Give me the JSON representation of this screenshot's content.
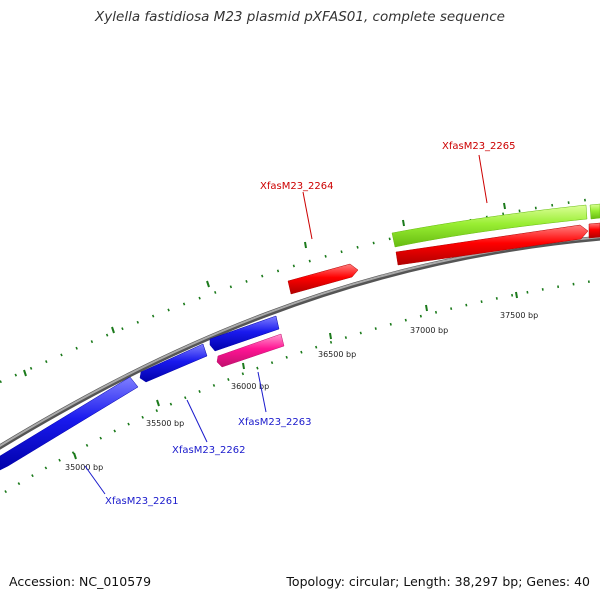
{
  "title": "Xylella fastidiosa M23 plasmid pXFAS01, complete sequence",
  "footer": {
    "accession": "Accession: NC_010579",
    "topology": "Topology: circular; Length: 38,297 bp; Genes: 40"
  },
  "colors": {
    "backbone": "#8a8a8a",
    "forward_gene": "#ff0000",
    "reverse_gene": "#1a1aee",
    "pink_gene": "#ff1493",
    "green_gene": "#99ee33",
    "tick": "#1b7a1b",
    "label_red": "#cc0000",
    "label_blue": "#1a1acc"
  },
  "ticks": {
    "labels": [
      "35000 bp",
      "35500 bp",
      "36000 bp",
      "36500 bp",
      "37000 bp",
      "37500 bp"
    ]
  },
  "genes": [
    {
      "name": "XfasM23_2261",
      "color": "reverse"
    },
    {
      "name": "XfasM23_2262",
      "color": "reverse"
    },
    {
      "name": "XfasM23_2263",
      "color": "pink"
    },
    {
      "name": "XfasM23_2264",
      "color": "forward"
    },
    {
      "name": "XfasM23_2265",
      "color": "forward"
    }
  ]
}
